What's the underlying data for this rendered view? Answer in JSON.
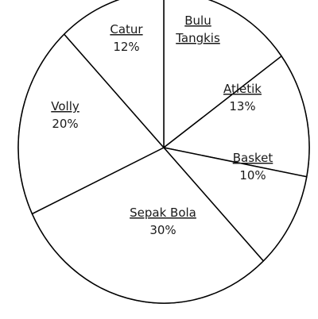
{
  "chart_data": {
    "type": "pie",
    "title": "",
    "slices": [
      {
        "label_lines": [
          "Bulu",
          "Tangkis"
        ],
        "value": 15,
        "value_label": ""
      },
      {
        "label_lines": [
          "Atletik"
        ],
        "value": 13,
        "value_label": "13%"
      },
      {
        "label_lines": [
          "Basket"
        ],
        "value": 10,
        "value_label": "10%"
      },
      {
        "label_lines": [
          "Sepak Bola"
        ],
        "value": 30,
        "value_label": "30%"
      },
      {
        "label_lines": [
          "Volly"
        ],
        "value": 20,
        "value_label": "20%"
      },
      {
        "label_lines": [
          "Catur"
        ],
        "value": 12,
        "value_label": "12%"
      }
    ],
    "start_angle_deg": 0,
    "direction": "clockwise",
    "legend": "none",
    "colors": {
      "fill": "#ffffff",
      "stroke": "#000000"
    }
  }
}
